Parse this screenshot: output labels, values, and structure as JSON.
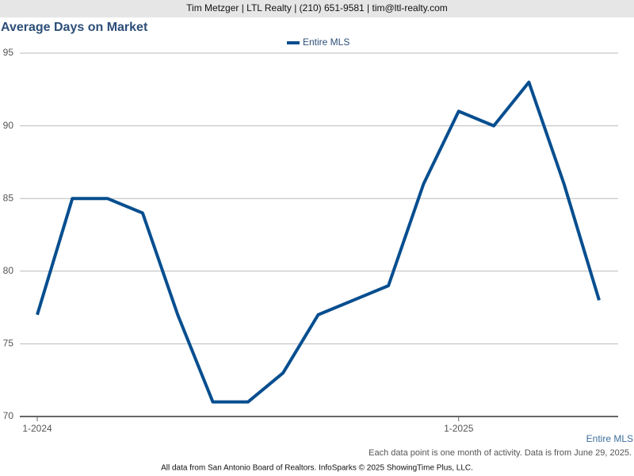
{
  "header": "Tim Metzger | LTL Realty | (210) 651-9581 | tim@ltl-realty.com",
  "chart_data": {
    "type": "line",
    "title": "Average Days on Market",
    "categories": [
      "1-2024",
      null,
      null,
      null,
      null,
      null,
      null,
      null,
      null,
      null,
      null,
      null,
      "1-2025",
      null,
      null,
      null,
      null
    ],
    "series": [
      {
        "name": "Entire MLS",
        "color": "#064e8f",
        "values": [
          77,
          85,
          85,
          84,
          77,
          71,
          71,
          73,
          77,
          78,
          79,
          86,
          91,
          90,
          93,
          86,
          78
        ]
      }
    ],
    "x_label": "Entire MLS",
    "ylim": [
      70,
      95
    ],
    "yticks": [
      70,
      75,
      80,
      85,
      90,
      95
    ],
    "grid": true,
    "legend": "top"
  },
  "note": "Each data point is one month of activity. Data is from June 29, 2025.",
  "footer": "All data from San Antonio Board of Realtors. InfoSparks © 2025 ShowingTime Plus, LLC."
}
